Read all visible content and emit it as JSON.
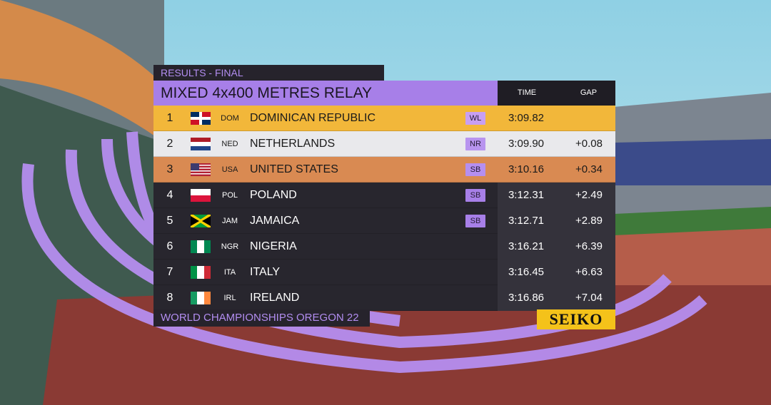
{
  "header": {
    "label": "RESULTS - FINAL",
    "title": "MIXED 4x400 METRES RELAY",
    "columns": [
      "TIME",
      "GAP"
    ]
  },
  "rows": [
    {
      "rank": "1",
      "code": "DOM",
      "name": "DOMINICAN REPUBLIC",
      "mark": "WL",
      "time": "3:09.82"
    },
    {
      "rank": "2",
      "code": "NED",
      "name": "NETHERLANDS",
      "mark": "NR",
      "time": "3:09.90",
      "gap": "+0.08"
    },
    {
      "rank": "3",
      "code": "USA",
      "name": "UNITED STATES",
      "mark": "SB",
      "time": "3:10.16",
      "gap": "+0.34"
    },
    {
      "rank": "4",
      "code": "POL",
      "name": "POLAND",
      "mark": "SB",
      "time": "3:12.31",
      "gap": "+2.49"
    },
    {
      "rank": "5",
      "code": "JAM",
      "name": "JAMAICA",
      "mark": "SB",
      "time": "3:12.71",
      "gap": "+2.89"
    },
    {
      "rank": "6",
      "code": "NGR",
      "name": "NIGERIA",
      "time": "3:16.21",
      "gap": "+6.39"
    },
    {
      "rank": "7",
      "code": "ITA",
      "name": "ITALY",
      "time": "3:16.45",
      "gap": "+6.63"
    },
    {
      "rank": "8",
      "code": "IRL",
      "name": "IRELAND",
      "time": "3:16.86",
      "gap": "+7.04"
    }
  ],
  "footer": {
    "event": "WORLD CHAMPIONSHIPS OREGON 22",
    "sponsor": "SEIKO"
  }
}
